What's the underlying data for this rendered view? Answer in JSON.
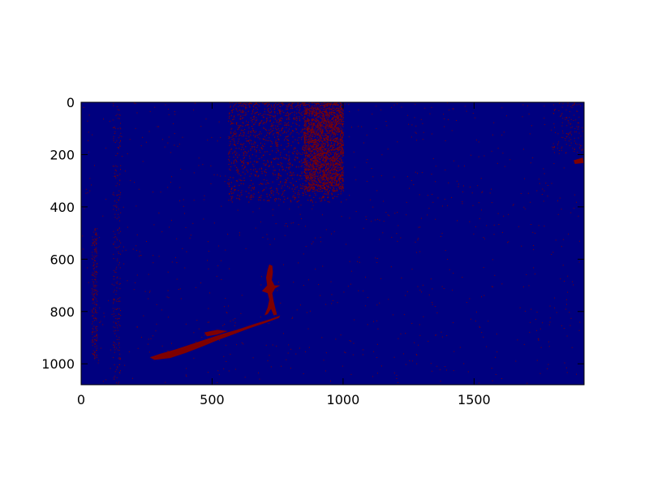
{
  "chart_data": {
    "type": "heatmap",
    "title": "",
    "xlabel": "",
    "ylabel": "",
    "xlim": [
      0,
      1920
    ],
    "ylim": [
      1080,
      0
    ],
    "x_ticks": [
      0,
      500,
      1000,
      1500
    ],
    "y_ticks": [
      0,
      200,
      400,
      600,
      800,
      1000
    ],
    "x_tick_labels": [
      "0",
      "500",
      "1000",
      "1500"
    ],
    "y_tick_labels": [
      "0",
      "200",
      "400",
      "600",
      "800",
      "1000"
    ],
    "values": [
      0,
      1
    ],
    "colors": {
      "background_value": "#00007f",
      "foreground_value": "#7f0000",
      "axes_frame": "#000000",
      "figure_background": "#ffffff"
    },
    "grid": false,
    "colorbar": false,
    "regions": [
      {
        "label": "dense speckle cluster",
        "x": [
          560,
          1000
        ],
        "y": [
          0,
          380
        ]
      },
      {
        "label": "person figure",
        "x": [
          670,
          760
        ],
        "y": [
          620,
          820
        ]
      },
      {
        "label": "elongated shadow streak",
        "x": [
          260,
          760
        ],
        "y": [
          800,
          990
        ]
      },
      {
        "label": "edge mark",
        "x": [
          1880,
          1920
        ],
        "y": [
          210,
          240
        ]
      }
    ]
  }
}
